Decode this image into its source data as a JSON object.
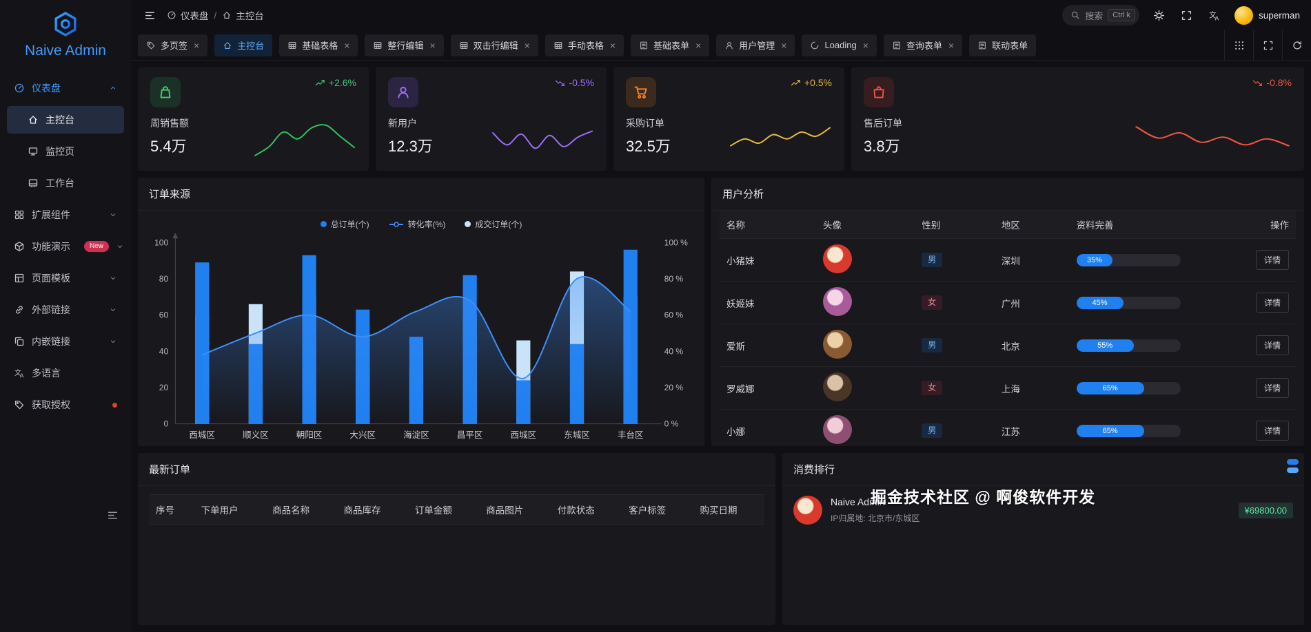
{
  "watermark": "掘金技术社区 @ 啊俊软件开发",
  "colors": {
    "accent": "#2080f0",
    "sidebar_bg": "#141418",
    "card_bg": "#18181d"
  },
  "sidebar": {
    "logo_title": "Naive Admin",
    "items": [
      {
        "id": "dashboard",
        "label": "仪表盘",
        "icon": "gauge",
        "active": true,
        "expanded": true,
        "children": [
          {
            "id": "console",
            "label": "主控台",
            "icon": "home",
            "selected": true
          },
          {
            "id": "monitor",
            "label": "监控页",
            "icon": "monitor",
            "selected": false
          },
          {
            "id": "workplace",
            "label": "工作台",
            "icon": "desktop",
            "selected": false
          }
        ]
      },
      {
        "id": "components",
        "label": "扩展组件",
        "icon": "nodes",
        "expandable": true
      },
      {
        "id": "features",
        "label": "功能演示",
        "icon": "cube",
        "badge": "New",
        "expandable": true
      },
      {
        "id": "templates",
        "label": "页面模板",
        "icon": "layout",
        "expandable": true
      },
      {
        "id": "external-link",
        "label": "外部链接",
        "icon": "link",
        "expandable": true
      },
      {
        "id": "embedded-link",
        "label": "内嵌链接",
        "icon": "embed",
        "expandable": true
      },
      {
        "id": "i18n",
        "label": "多语言",
        "icon": "lang"
      },
      {
        "id": "license",
        "label": "获取授权",
        "icon": "tag",
        "dot": true
      }
    ]
  },
  "header": {
    "breadcrumb": [
      {
        "label": "仪表盘",
        "icon": "gauge"
      },
      {
        "label": "主控台",
        "icon": "home"
      }
    ],
    "search_placeholder": "搜索",
    "search_kbd": "Ctrl k",
    "username": "superman"
  },
  "tabs": {
    "items": [
      {
        "label": "多页签",
        "icon": "tag",
        "closable": true,
        "active": false
      },
      {
        "label": "主控台",
        "icon": "home",
        "closable": false,
        "active": true
      },
      {
        "label": "基础表格",
        "icon": "table",
        "closable": true,
        "active": false
      },
      {
        "label": "整行编辑",
        "icon": "table",
        "closable": true,
        "active": false
      },
      {
        "label": "双击行编辑",
        "icon": "table",
        "closable": true,
        "active": false
      },
      {
        "label": "手动表格",
        "icon": "table",
        "closable": true,
        "active": false
      },
      {
        "label": "基础表单",
        "icon": "form",
        "closable": true,
        "active": false
      },
      {
        "label": "用户管理",
        "icon": "person",
        "closable": true,
        "active": false
      },
      {
        "label": "Loading",
        "icon": "loading",
        "closable": true,
        "active": false
      },
      {
        "label": "查询表单",
        "icon": "form",
        "closable": true,
        "active": false
      },
      {
        "label": "联动表单",
        "icon": "form",
        "closable": false,
        "active": false
      }
    ]
  },
  "stats": [
    {
      "label": "周销售额",
      "value": "5.4万",
      "delta": "+2.6%",
      "trend": "up",
      "icon": "bag",
      "icon_color": "#3fd068",
      "icon_bg": "rgba(46,164,92,0.18)",
      "delta_color": "#4dc477",
      "spark_color": "#2fc45e",
      "spark": [
        5,
        26,
        60,
        44,
        70,
        76,
        50,
        24
      ]
    },
    {
      "label": "新用户",
      "value": "12.3万",
      "delta": "-0.5%",
      "trend": "down",
      "icon": "person",
      "icon_color": "#a06ef8",
      "icon_bg": "rgba(138,92,246,0.18)",
      "delta_color": "#9d6ff8",
      "spark_color": "#9d6ff8",
      "spark": [
        58,
        30,
        55,
        22,
        52,
        26,
        48,
        62
      ]
    },
    {
      "label": "采购订单",
      "value": "32.5万",
      "delta": "+0.5%",
      "trend": "up",
      "icon": "cart",
      "icon_color": "#f5872b",
      "icon_bg": "rgba(240,138,32,0.16)",
      "delta_color": "#e9b63d",
      "spark_color": "#e6b93f",
      "spark": [
        28,
        44,
        34,
        54,
        44,
        60,
        50,
        70
      ]
    },
    {
      "label": "售后订单",
      "value": "3.8万",
      "delta": "-0.8%",
      "trend": "down",
      "icon": "box",
      "icon_color": "#f55242",
      "icon_bg": "rgba(240,66,50,0.14)",
      "delta_color": "#ef5a41",
      "spark_color": "#ea5340",
      "spark": [
        72,
        46,
        58,
        36,
        48,
        30,
        44,
        28
      ]
    }
  ],
  "chart_data": [
    {
      "type": "bar+line",
      "title": "订单来源",
      "categories": [
        "西城区",
        "顺义区",
        "朝阳区",
        "大兴区",
        "海淀区",
        "昌平区",
        "西城区",
        "东城区",
        "丰台区"
      ],
      "series": [
        {
          "name": "总订单(个)",
          "type": "bar",
          "color": "#2080f0",
          "values": [
            89,
            44,
            93,
            63,
            48,
            82,
            24,
            44,
            96
          ]
        },
        {
          "name": "转化率(%)",
          "type": "line",
          "color": "#3f8ef7",
          "values": [
            38,
            50,
            60,
            48,
            62,
            68,
            25,
            80,
            62
          ]
        },
        {
          "name": "成交订单(个)",
          "type": "bar",
          "color": "#c9e4f8",
          "values": [
            60,
            66,
            70,
            50,
            30,
            60,
            46,
            84,
            70
          ]
        }
      ],
      "ylim": [
        0,
        100
      ],
      "y_ticks": [
        0,
        20,
        40,
        60,
        80,
        100
      ],
      "y2_ticks": [
        "0 %",
        "20 %",
        "40 %",
        "60 %",
        "80 %",
        "100 %"
      ],
      "legend_position": "top",
      "grid": false
    }
  ],
  "user_analysis": {
    "title": "用户分析",
    "columns": [
      "名称",
      "头像",
      "性别",
      "地区",
      "资料完善",
      "操作"
    ],
    "rows": [
      {
        "name": "小猪妹",
        "gender": "男",
        "region": "深圳",
        "progress": "35%",
        "action": "详情",
        "avatar_colors": [
          "#f7e7cf",
          "#d93a2b"
        ]
      },
      {
        "name": "妖姬妹",
        "gender": "女",
        "region": "广州",
        "progress": "45%",
        "action": "详情",
        "avatar_colors": [
          "#f6d5e6",
          "#a85a9a"
        ]
      },
      {
        "name": "爱斯",
        "gender": "男",
        "region": "北京",
        "progress": "55%",
        "action": "详情",
        "avatar_colors": [
          "#ecd0a8",
          "#8a5a33"
        ]
      },
      {
        "name": "罗威娜",
        "gender": "女",
        "region": "上海",
        "progress": "65%",
        "action": "详情",
        "avatar_colors": [
          "#d9c2a6",
          "#4a3526"
        ]
      },
      {
        "name": "小娜",
        "gender": "男",
        "region": "江苏",
        "progress": "65%",
        "action": "详情",
        "avatar_colors": [
          "#f0cdd8",
          "#8e4f73"
        ]
      }
    ]
  },
  "latest_orders": {
    "title": "最新订单",
    "columns": [
      "序号",
      "下单用户",
      "商品名称",
      "商品库存",
      "订单金额",
      "商品图片",
      "付款状态",
      "客户标签",
      "购买日期"
    ]
  },
  "consume_rank": {
    "title": "消费排行",
    "item": {
      "title": "Naive Admin",
      "subtitle": "IP归属地: 北京市/东城区",
      "amount": "¥69800.00"
    }
  }
}
